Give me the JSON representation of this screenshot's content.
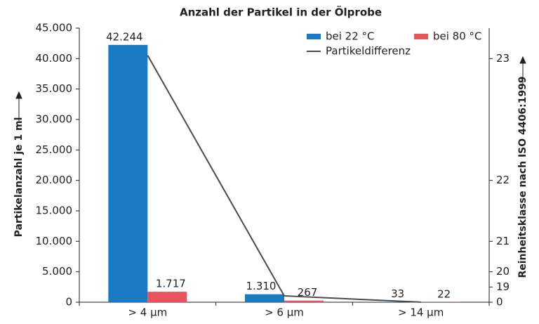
{
  "chart_data": {
    "type": "bar",
    "title": "Anzahl der Partikel in der Ölprobe",
    "y_label": "Partikelanzahl je 1 ml",
    "y2_label": "Reinheitsklasse nach ISO 4406:1999",
    "categories": [
      "> 4 µm",
      "> 6 µm",
      "> 14 µm"
    ],
    "series": [
      {
        "name": "bei 22 °C",
        "color": "#1a7bc4",
        "type": "bar",
        "values": [
          42244,
          1310,
          33
        ],
        "value_labels": [
          "42.244",
          "1.310",
          "33"
        ]
      },
      {
        "name": "bei 80 °C",
        "color": "#e8545e",
        "type": "bar",
        "values": [
          1717,
          267,
          22
        ],
        "value_labels": [
          "1.717",
          "267",
          "22"
        ]
      },
      {
        "name": "Partikeldifferenz",
        "color": "#4a4a4a",
        "type": "line",
        "axis": "y2",
        "values": [
          40527,
          1043,
          11
        ]
      }
    ],
    "ylim": [
      0,
      45000
    ],
    "yticks": [
      0,
      {
        "value": 5000,
        "label": "5.000"
      },
      {
        "value": 10000,
        "label": "10.000"
      },
      {
        "value": 15000,
        "label": "15.000"
      },
      {
        "value": 20000,
        "label": "20.000"
      },
      {
        "value": 25000,
        "label": "25.000"
      },
      {
        "value": 30000,
        "label": "30.000"
      },
      {
        "value": 35000,
        "label": "35.000"
      },
      {
        "value": 40000,
        "label": "40.000"
      },
      {
        "value": 45000,
        "label": "45.000"
      }
    ],
    "y2lim": [
      0,
      45000
    ],
    "y2ticks": [
      0,
      {
        "value": 2500,
        "label": "19"
      },
      {
        "value": 5000,
        "label": "20"
      },
      {
        "value": 10000,
        "label": "21"
      },
      {
        "value": 20000,
        "label": "22"
      },
      {
        "value": 40000,
        "label": "23"
      }
    ]
  }
}
